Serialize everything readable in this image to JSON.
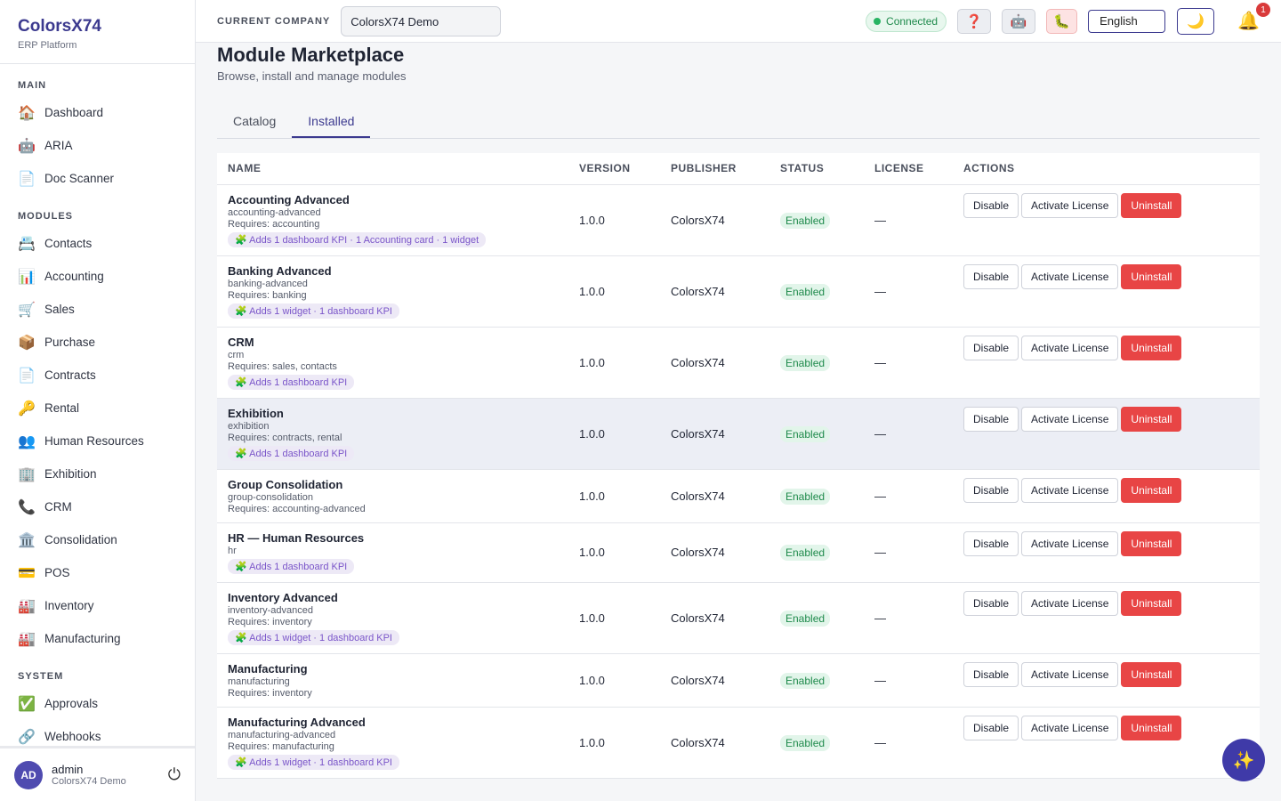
{
  "sidebar": {
    "brand": "ColorsX74",
    "subtitle": "ERP Platform",
    "sections": [
      {
        "title": "MAIN",
        "items": [
          {
            "icon": "🏠",
            "label": "Dashboard"
          },
          {
            "icon": "🤖",
            "label": "ARIA"
          },
          {
            "icon": "📄",
            "label": "Doc Scanner"
          }
        ]
      },
      {
        "title": "MODULES",
        "items": [
          {
            "icon": "📇",
            "label": "Contacts"
          },
          {
            "icon": "📊",
            "label": "Accounting"
          },
          {
            "icon": "🛒",
            "label": "Sales"
          },
          {
            "icon": "📦",
            "label": "Purchase"
          },
          {
            "icon": "📄",
            "label": "Contracts"
          },
          {
            "icon": "🔑",
            "label": "Rental"
          },
          {
            "icon": "👥",
            "label": "Human Resources"
          },
          {
            "icon": "🏢",
            "label": "Exhibition"
          },
          {
            "icon": "📞",
            "label": "CRM"
          },
          {
            "icon": "🏛️",
            "label": "Consolidation"
          },
          {
            "icon": "💳",
            "label": "POS"
          },
          {
            "icon": "🏭",
            "label": "Inventory"
          },
          {
            "icon": "🏭",
            "label": "Manufacturing"
          }
        ]
      },
      {
        "title": "SYSTEM",
        "items": [
          {
            "icon": "✅",
            "label": "Approvals"
          },
          {
            "icon": "🔗",
            "label": "Webhooks"
          }
        ]
      }
    ],
    "user": {
      "initials": "AD",
      "name": "admin",
      "company": "ColorsX74 Demo",
      "logout": "⏻"
    }
  },
  "topbar": {
    "company_label": "CURRENT COMPANY",
    "company": "ColorsX74 Demo",
    "status": "Connected",
    "help": "❓",
    "bot": "🤖",
    "bug": "🐛",
    "language": "English",
    "theme": "🌙",
    "bell": "🔔",
    "notifications": "1"
  },
  "header": {
    "title": "Module Marketplace",
    "subtitle": "Browse, install and manage modules"
  },
  "tabs": [
    "Catalog",
    "Installed"
  ],
  "table": {
    "columns": [
      "NAME",
      "VERSION",
      "PUBLISHER",
      "STATUS",
      "LICENSE",
      "ACTIONS"
    ],
    "actions": [
      "Disable",
      "Activate License",
      "Uninstall"
    ],
    "rows": [
      {
        "name": "Accounting Advanced",
        "slug": "accounting-advanced",
        "requires": "Requires: accounting",
        "extras": "🧩 Adds 1 dashboard KPI · 1 Accounting card · 1 widget",
        "version": "1.0.0",
        "publisher": "ColorsX74",
        "status": "Enabled",
        "license": "—"
      },
      {
        "name": "Banking Advanced",
        "slug": "banking-advanced",
        "requires": "Requires: banking",
        "extras": "🧩 Adds 1 widget · 1 dashboard KPI",
        "version": "1.0.0",
        "publisher": "ColorsX74",
        "status": "Enabled",
        "license": "—"
      },
      {
        "name": "CRM",
        "slug": "crm",
        "requires": "Requires: sales, contacts",
        "extras": "🧩 Adds 1 dashboard KPI",
        "version": "1.0.0",
        "publisher": "ColorsX74",
        "status": "Enabled",
        "license": "—"
      },
      {
        "name": "Exhibition",
        "slug": "exhibition",
        "requires": "Requires: contracts, rental",
        "extras": "🧩 Adds 1 dashboard KPI",
        "version": "1.0.0",
        "publisher": "ColorsX74",
        "status": "Enabled",
        "license": "—"
      },
      {
        "name": "Group Consolidation",
        "slug": "group-consolidation",
        "requires": "Requires: accounting-advanced",
        "version": "1.0.0",
        "publisher": "ColorsX74",
        "status": "Enabled",
        "license": "—"
      },
      {
        "name": "HR — Human Resources",
        "slug": "hr",
        "extras": "🧩 Adds 1 dashboard KPI",
        "version": "1.0.0",
        "publisher": "ColorsX74",
        "status": "Enabled",
        "license": "—"
      },
      {
        "name": "Inventory Advanced",
        "slug": "inventory-advanced",
        "requires": "Requires: inventory",
        "extras": "🧩 Adds 1 widget · 1 dashboard KPI",
        "version": "1.0.0",
        "publisher": "ColorsX74",
        "status": "Enabled",
        "license": "—"
      },
      {
        "name": "Manufacturing",
        "slug": "manufacturing",
        "requires": "Requires: inventory",
        "version": "1.0.0",
        "publisher": "ColorsX74",
        "status": "Enabled",
        "license": "—"
      },
      {
        "name": "Manufacturing Advanced",
        "slug": "manufacturing-advanced",
        "requires": "Requires: manufacturing",
        "extras": "🧩 Adds 1 widget · 1 dashboard KPI",
        "version": "1.0.0",
        "publisher": "ColorsX74",
        "status": "Enabled",
        "license": "—"
      }
    ]
  },
  "fab": "✨"
}
